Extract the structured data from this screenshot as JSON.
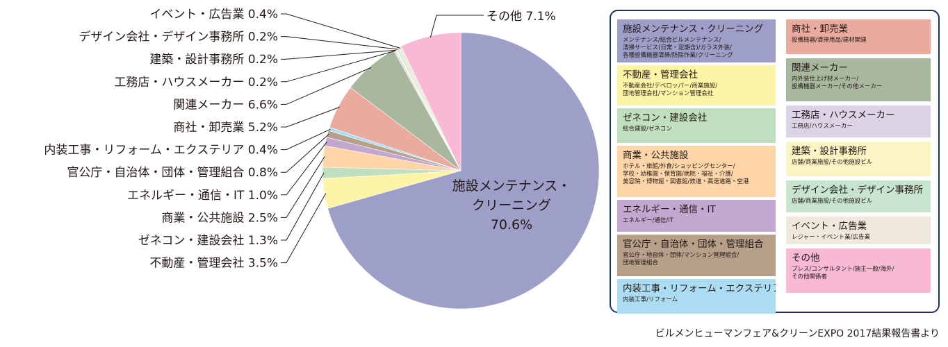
{
  "chart_data": {
    "type": "pie",
    "slices": [
      {
        "label": "施設メンテナンス・クリーニング",
        "value": 70.6,
        "color": "#9d9fc9"
      },
      {
        "label": "不動産・管理会社",
        "value": 3.5,
        "color": "#fef4a6"
      },
      {
        "label": "ゼネコン・建設会社",
        "value": 1.3,
        "color": "#c0dfbe"
      },
      {
        "label": "商業・公共施設",
        "value": 2.5,
        "color": "#fdd5a8"
      },
      {
        "label": "エネルギー・通信・IT",
        "value": 1.0,
        "color": "#c4a7d1"
      },
      {
        "label": "官公庁・自治体・団体・管理組合",
        "value": 0.8,
        "color": "#b7a08a"
      },
      {
        "label": "内装工事・リフォーム・エクステリア",
        "value": 0.4,
        "color": "#abdcf1"
      },
      {
        "label": "商社・卸売業",
        "value": 5.2,
        "color": "#e8ab9d"
      },
      {
        "label": "関連メーカー",
        "value": 6.6,
        "color": "#a7b89e"
      },
      {
        "label": "工務店・ハウスメーカー",
        "value": 0.2,
        "color": "#ddd3e6"
      },
      {
        "label": "建築・設計事務所",
        "value": 0.2,
        "color": "#fbf5c4"
      },
      {
        "label": "デザイン会社・デザイン事務所",
        "value": 0.2,
        "color": "#c6e4d0"
      },
      {
        "label": "イベント・広告業",
        "value": 0.4,
        "color": "#efe8dc"
      },
      {
        "label": "その他",
        "value": 7.1,
        "color": "#f7b9d3"
      }
    ],
    "outside_labels": [
      {
        "text": "イベント・広告業 0.4%",
        "slice": 12
      },
      {
        "text": "デザイン会社・デザイン事務所 0.2%",
        "slice": 11
      },
      {
        "text": "建築・設計事務所 0.2%",
        "slice": 10
      },
      {
        "text": "工務店・ハウスメーカー 0.2%",
        "slice": 9
      },
      {
        "text": "関連メーカー 6.6%",
        "slice": 8
      },
      {
        "text": "商社・卸売業 5.2%",
        "slice": 7
      },
      {
        "text": "内装工事・リフォーム・エクステリア 0.4%",
        "slice": 6
      },
      {
        "text": "官公庁・自治体・団体・管理組合 0.8%",
        "slice": 5
      },
      {
        "text": "エネルギー・通信・IT 1.0%",
        "slice": 4
      },
      {
        "text": "商業・公共施設 2.5%",
        "slice": 3
      },
      {
        "text": "ゼネコン・建設会社 1.3%",
        "slice": 2
      },
      {
        "text": "不動産・管理会社 3.5%",
        "slice": 1
      }
    ],
    "other_label": "その他 7.1%",
    "inside_label_lines": [
      "施設メンテナンス・",
      "クリーニング",
      "70.6%"
    ]
  },
  "legend": {
    "left": [
      {
        "title": "施設メンテナンス・クリーニング",
        "sub": "メンテナンス/総合ビルメンテナンス/\n清掃サービス(日常・定期含)/ガラス外装/\n各種設備機器清掃/防除作業/クリーニング",
        "color": "#9d9fc9"
      },
      {
        "title": "不動産・管理会社",
        "sub": "不動産会社/デベロッパー/商業施設/\n団地管理会社/マンション管理会社",
        "color": "#fef4a6"
      },
      {
        "title": "ゼネコン・建設会社",
        "sub": "総合建設/ゼネコン",
        "color": "#c0dfbe"
      },
      {
        "title": "商業・公共施設",
        "sub": "ホテル・旅館/外食/ショッピングセンター/\n学校・幼稚園・保育園/病院・福祉・介護/\n美容院・博物館・図書館/鉄道・高速道路・空港",
        "color": "#fdd5a8"
      },
      {
        "title": "エネルギー・通信・IT",
        "sub": "エネルギー/通信/IT",
        "color": "#c4a7d1"
      },
      {
        "title": "官公庁・自治体・団体・管理組合",
        "sub": "官公庁・地自体・団体/マンション管理組合/\n団地管理組合",
        "color": "#b7a08a"
      },
      {
        "title": "内装工事・リフォーム・エクステリア",
        "sub": "内装工事/リフォーム",
        "color": "#abdcf1"
      }
    ],
    "right": [
      {
        "title": "商社・卸売業",
        "sub": "設備機器/清掃用品/建材関連",
        "color": "#e8ab9d"
      },
      {
        "title": "関連メーカー",
        "sub": "内外装仕上げ材メーカー/\n設備機器メーカー/その他メーカー",
        "color": "#a7b89e"
      },
      {
        "title": "工務店・ハウスメーカー",
        "sub": "工務店/ハウスメーカー",
        "color": "#ddd3e6"
      },
      {
        "title": "建築・設計事務所",
        "sub": "店舗/商業施設/その他施設ビル",
        "color": "#fbf5c4"
      },
      {
        "title": "デザイン会社・デザイン事務所",
        "sub": "店舗/商業施設/その他施設ビル",
        "color": "#c6e4d0"
      },
      {
        "title": "イベント・広告業",
        "sub": "レジャー・イベント業/広告業",
        "color": "#efe8dc"
      },
      {
        "title": "その他",
        "sub": "プレス/コンサルタント/施主一般/海外/\nその他関係者",
        "color": "#f7b9d3"
      }
    ]
  },
  "source": "ビルメンヒューマンフェア&クリーンEXPO 2017結果報告書より"
}
